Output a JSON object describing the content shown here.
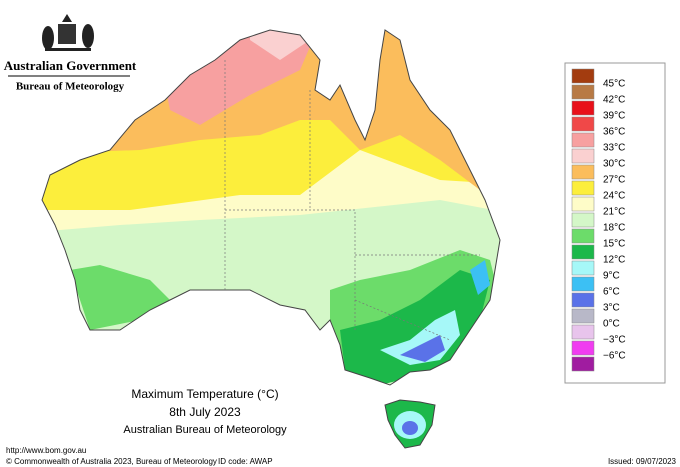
{
  "header": {
    "government": "Australian Government",
    "bureau": "Bureau of Meteorology"
  },
  "caption": {
    "title": "Maximum Temperature (°C)",
    "date": "8th July 2023",
    "source": "Australian Bureau of Meteorology"
  },
  "legend": {
    "labels": [
      "45°C",
      "42°C",
      "39°C",
      "36°C",
      "33°C",
      "30°C",
      "27°C",
      "24°C",
      "21°C",
      "18°C",
      "15°C",
      "12°C",
      "9°C",
      "6°C",
      "3°C",
      "0°C",
      "−3°C",
      "−6°C"
    ],
    "colors": [
      "#a33c0f",
      "#b87a45",
      "#e8101a",
      "#f04848",
      "#f7a0a0",
      "#fad0d0",
      "#fbbd5c",
      "#fcee3c",
      "#fefcc8",
      "#d4f7c8",
      "#6cdc6a",
      "#1cb84a",
      "#a6f8f8",
      "#3cc0f4",
      "#5a72e8",
      "#b8b8c8",
      "#e8c4ec",
      "#f03cf0",
      "#a01ca0"
    ]
  },
  "footer": {
    "url": "http://www.bom.gov.au",
    "copyright": "© Commonwealth of Australia 2023, Bureau of Meteorology",
    "id": "ID code: AWAP",
    "issued": "Issued: 09/07/2023"
  }
}
